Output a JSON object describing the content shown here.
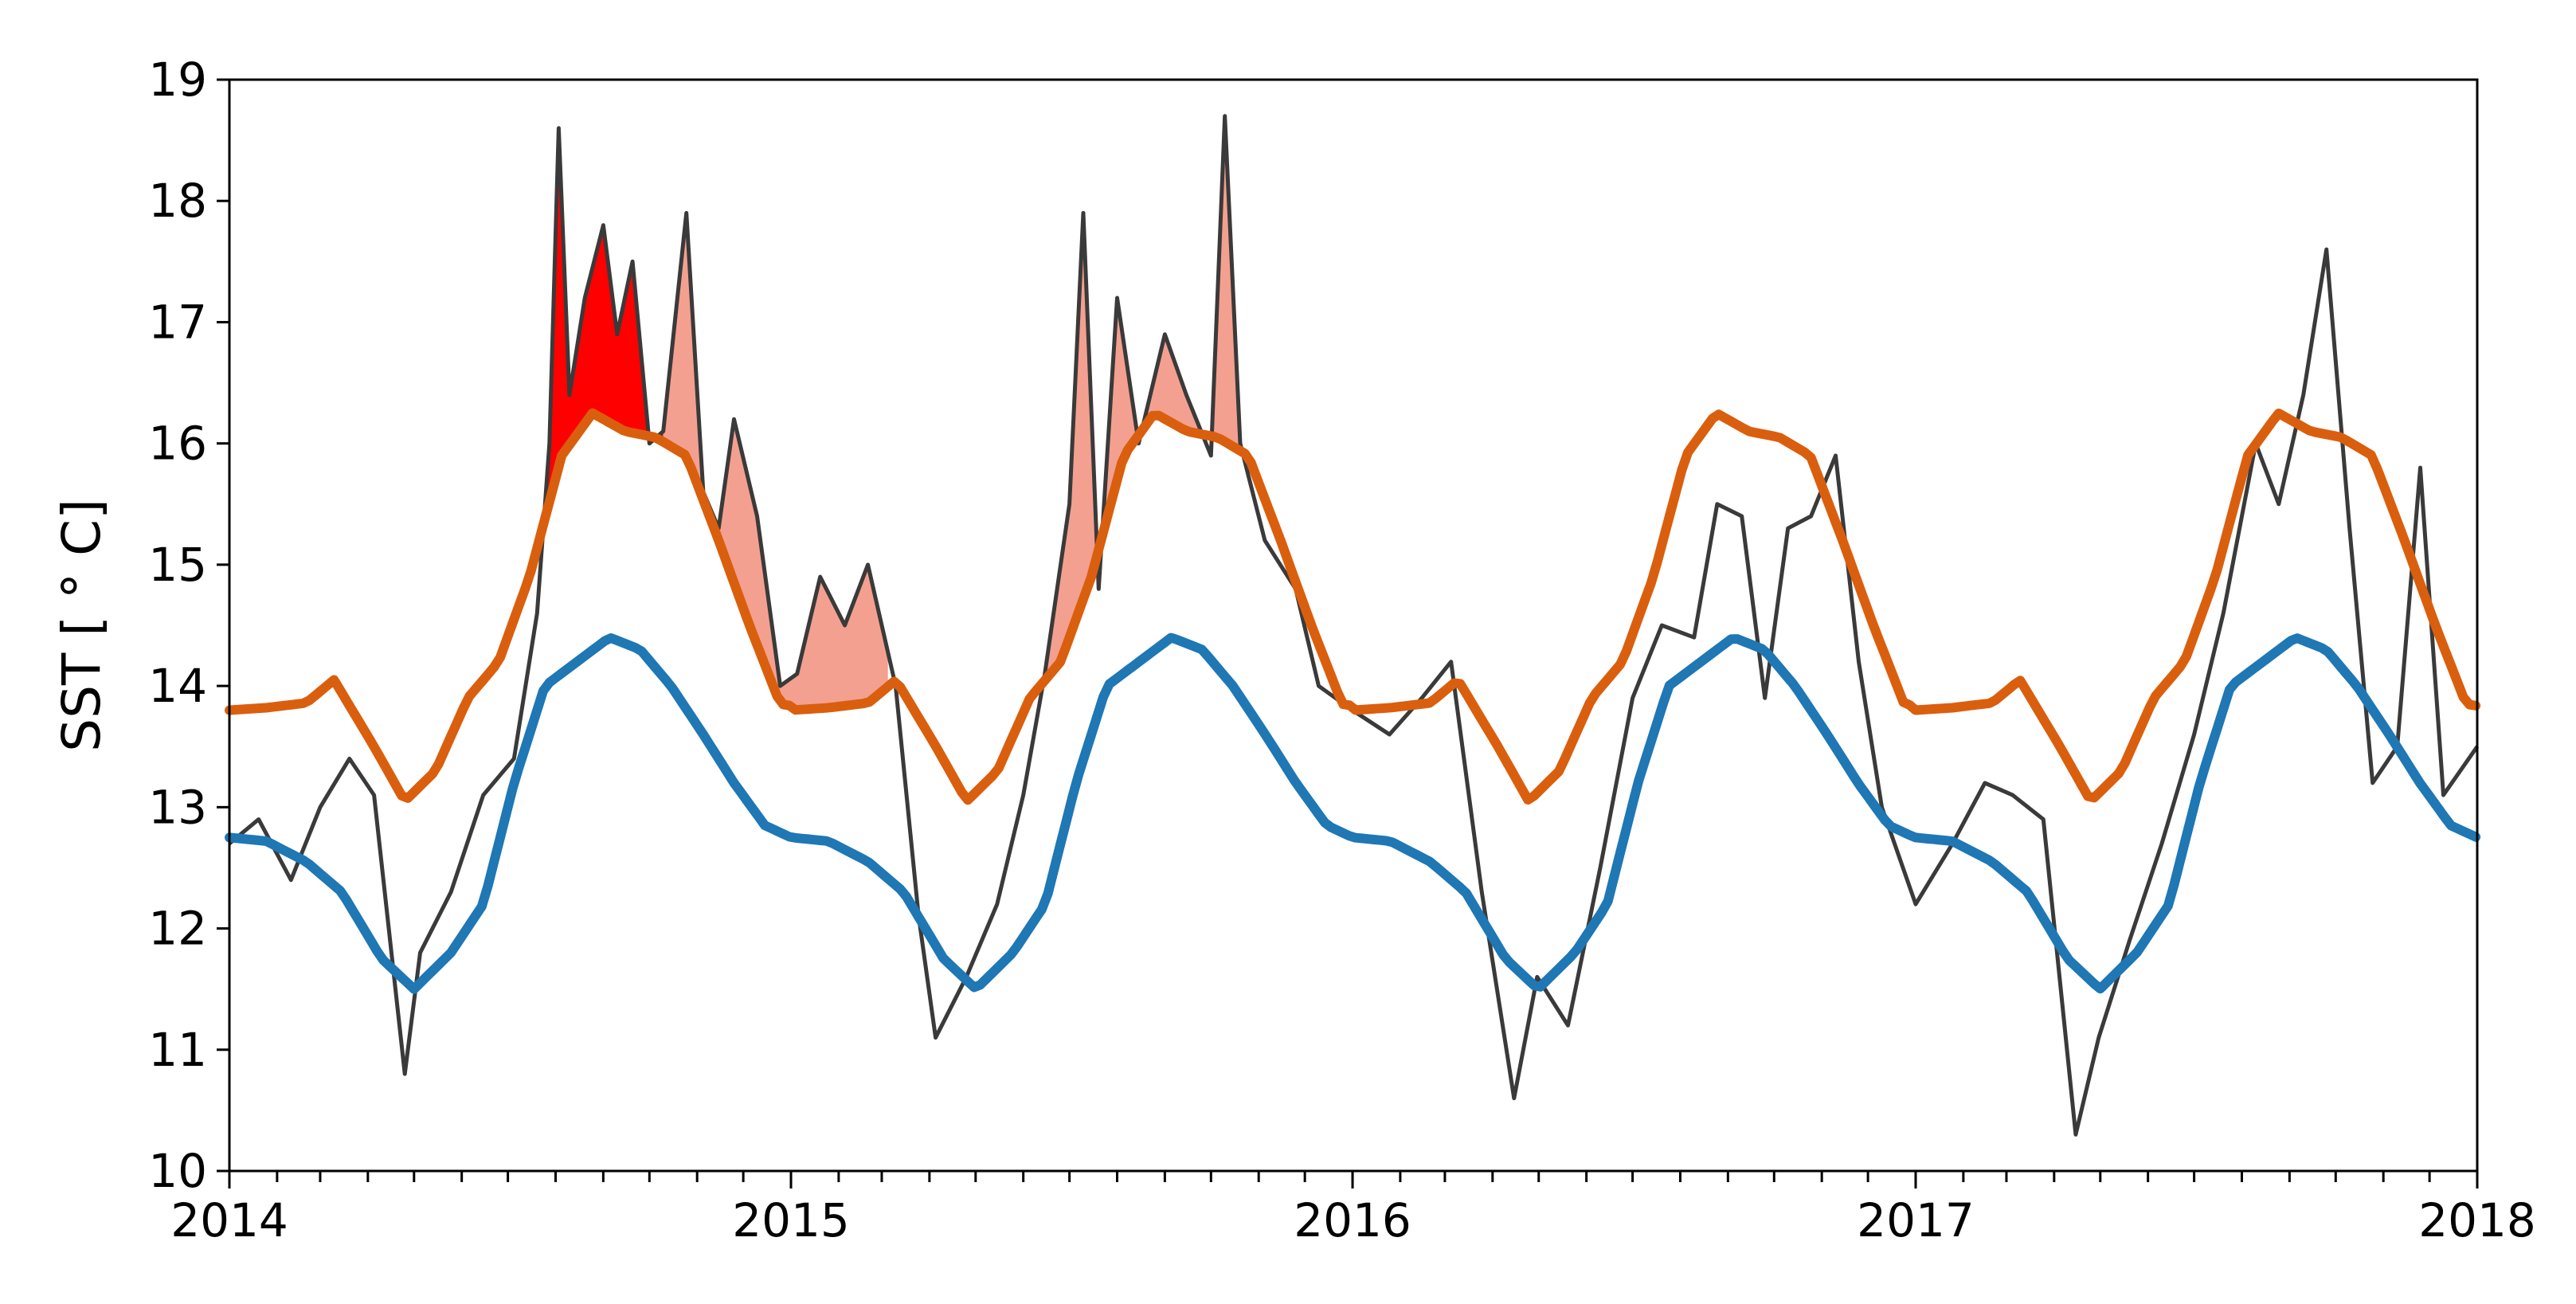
{
  "chart_data": {
    "type": "line",
    "title": "",
    "xlabel": "",
    "ylabel": "SST [$^\\circ$C]",
    "ylabel_display": "SST [ ° C]",
    "xlim": [
      "2014-01-01",
      "2018-01-01"
    ],
    "ylim": [
      10,
      19
    ],
    "x_ticks": [
      "2014-01-01",
      "2015-01-01",
      "2016-01-01",
      "2017-01-01",
      "2018-01-01"
    ],
    "x_tick_labels": [
      "2014",
      "2015",
      "2016",
      "2017",
      "2018"
    ],
    "x_minor_ticks": "monthly",
    "y_ticks": [
      10,
      11,
      12,
      13,
      14,
      15,
      16,
      17,
      18,
      19
    ],
    "y_tick_labels": [
      "10",
      "11",
      "12",
      "13",
      "14",
      "15",
      "16",
      "17",
      "18",
      "19"
    ],
    "grid": false,
    "legend": "none",
    "colors": {
      "sst": "#3a3a3a",
      "threshold": "#d95f0e",
      "climatology": "#1f77b4",
      "event_strong": "#ff0000",
      "event_moderate": "#f4a090"
    },
    "series": [
      {
        "key": "sst",
        "x": [
          "2014-01-01",
          "2014-01-20",
          "2014-02-10",
          "2014-03-01",
          "2014-03-20",
          "2014-04-05",
          "2014-04-25",
          "2014-05-05",
          "2014-05-25",
          "2014-06-15",
          "2014-07-05",
          "2014-07-20",
          "2014-07-28",
          "2014-08-03",
          "2014-08-10",
          "2014-08-20",
          "2014-09-01",
          "2014-09-10",
          "2014-09-20",
          "2014-10-01",
          "2014-10-10",
          "2014-10-25",
          "2014-11-05",
          "2014-11-15",
          "2014-11-25",
          "2014-12-10",
          "2014-12-25",
          "2015-01-05",
          "2015-01-20",
          "2015-02-05",
          "2015-02-20",
          "2015-03-10",
          "2015-03-25",
          "2015-04-05",
          "2015-04-25",
          "2015-05-15",
          "2015-06-01",
          "2015-06-15",
          "2015-07-01",
          "2015-07-10",
          "2015-07-20",
          "2015-08-01",
          "2015-08-15",
          "2015-09-01",
          "2015-09-15",
          "2015-10-01",
          "2015-10-10",
          "2015-10-20",
          "2015-11-05",
          "2015-11-25",
          "2015-12-10",
          "2016-01-01",
          "2016-01-25",
          "2016-02-15",
          "2016-03-05",
          "2016-03-25",
          "2016-04-15",
          "2016-04-30",
          "2016-05-20",
          "2016-06-10",
          "2016-07-01",
          "2016-07-20",
          "2016-08-10",
          "2016-08-25",
          "2016-09-10",
          "2016-09-25",
          "2016-10-10",
          "2016-10-25",
          "2016-11-10",
          "2016-11-25",
          "2016-12-10",
          "2017-01-01",
          "2017-01-25",
          "2017-02-15",
          "2017-03-05",
          "2017-03-25",
          "2017-04-15",
          "2017-04-30",
          "2017-05-20",
          "2017-06-10",
          "2017-07-01",
          "2017-07-20",
          "2017-08-10",
          "2017-08-25",
          "2017-09-10",
          "2017-09-25",
          "2017-10-10",
          "2017-10-25",
          "2017-11-10",
          "2017-11-25",
          "2017-12-10",
          "2018-01-01"
        ],
        "y": [
          12.7,
          12.9,
          12.4,
          13.0,
          13.4,
          13.1,
          10.8,
          11.8,
          12.3,
          13.1,
          13.4,
          14.6,
          16.0,
          18.6,
          16.4,
          17.2,
          17.8,
          16.9,
          17.5,
          16.0,
          16.1,
          17.9,
          15.6,
          15.3,
          16.2,
          15.4,
          14.0,
          14.1,
          14.9,
          14.5,
          15.0,
          14.0,
          12.1,
          11.1,
          11.6,
          12.2,
          13.1,
          14.1,
          15.5,
          17.9,
          14.8,
          17.2,
          16.0,
          16.9,
          16.4,
          15.9,
          18.7,
          16.0,
          15.2,
          14.8,
          14.0,
          13.8,
          13.6,
          13.9,
          14.2,
          12.3,
          10.6,
          11.6,
          11.2,
          12.5,
          13.9,
          14.5,
          14.4,
          15.5,
          15.4,
          13.9,
          15.3,
          15.4,
          15.9,
          14.2,
          13.0,
          12.2,
          12.7,
          13.2,
          13.1,
          12.9,
          10.3,
          11.1,
          11.9,
          12.7,
          13.6,
          14.6,
          16.0,
          15.5,
          16.4,
          17.6,
          15.3,
          13.2,
          13.5,
          15.8,
          13.1,
          13.5
        ]
      },
      {
        "key": "threshold",
        "x": [
          "2014-01-01",
          "2014-01-25",
          "2014-02-20",
          "2014-03-10",
          "2014-04-05",
          "2014-04-25",
          "2014-05-15",
          "2014-06-05",
          "2014-06-25",
          "2014-07-15",
          "2014-08-05",
          "2014-08-25",
          "2014-09-15",
          "2014-10-05",
          "2014-10-25",
          "2014-11-15",
          "2014-12-05",
          "2014-12-25",
          "2015-01-20",
          "2015-02-10",
          "2015-03-05",
          "2015-03-25"
        ],
        "y": [
          13.8,
          13.82,
          13.86,
          14.05,
          13.5,
          13.05,
          13.3,
          13.9,
          14.2,
          14.9,
          15.9,
          16.25,
          16.1,
          16.05,
          15.9,
          15.2,
          14.5,
          13.85,
          13.8,
          13.85,
          14.05,
          13.2
        ],
        "periodic": "yearly"
      },
      {
        "key": "climatology",
        "x": [
          "2014-01-01",
          "2014-01-25",
          "2014-02-20",
          "2014-03-15",
          "2014-04-10",
          "2014-05-01",
          "2014-05-25",
          "2014-06-15",
          "2014-07-05",
          "2014-07-25",
          "2014-08-15",
          "2014-09-05",
          "2014-09-25",
          "2014-10-15",
          "2014-11-05",
          "2014-11-25",
          "2014-12-15",
          "2015-01-01"
        ],
        "y": [
          12.75,
          12.72,
          12.55,
          12.3,
          11.75,
          11.5,
          11.8,
          12.2,
          13.2,
          14.0,
          14.2,
          14.4,
          14.3,
          14.0,
          13.6,
          13.2,
          12.85,
          12.75
        ],
        "periodic": "yearly"
      }
    ],
    "events": [
      {
        "start": "2014-07-20",
        "end": "2014-10-10",
        "category": "strong"
      },
      {
        "start": "2014-10-10",
        "end": "2015-03-05",
        "category": "moderate"
      },
      {
        "start": "2015-06-10",
        "end": "2015-11-10",
        "category": "moderate"
      }
    ]
  }
}
